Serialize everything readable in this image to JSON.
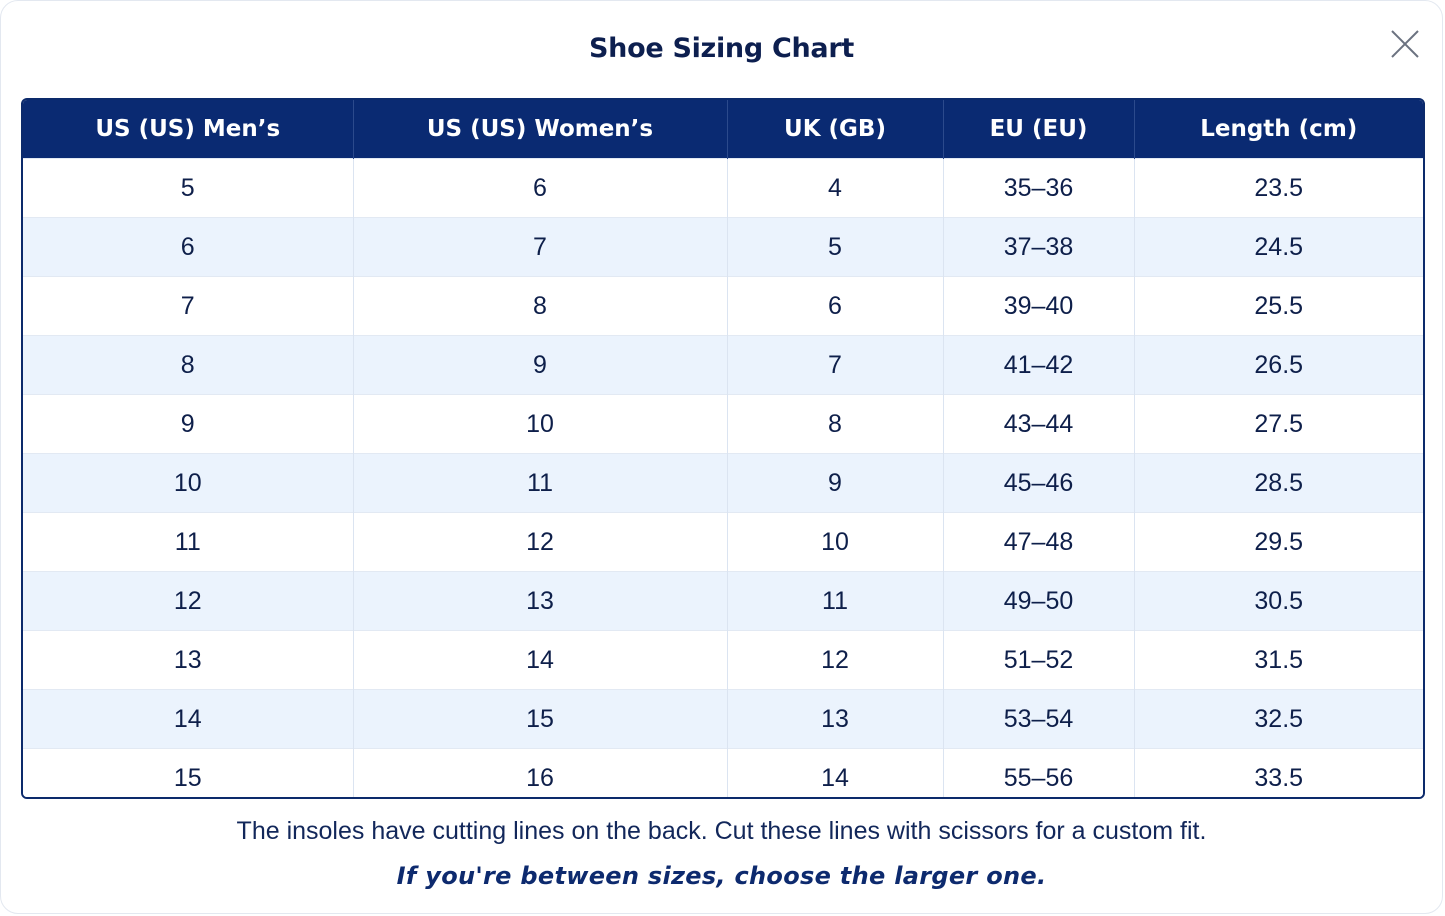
{
  "modal": {
    "title": "Shoe Sizing Chart",
    "close_icon": "close-icon"
  },
  "table": {
    "headers": [
      "US (US) Men’s",
      "US (US) Women’s",
      "UK (GB)",
      "EU (EU)",
      "Length (cm)"
    ],
    "rows": [
      [
        "5",
        "6",
        "4",
        "35–36",
        "23.5"
      ],
      [
        "6",
        "7",
        "5",
        "37–38",
        "24.5"
      ],
      [
        "7",
        "8",
        "6",
        "39–40",
        "25.5"
      ],
      [
        "8",
        "9",
        "7",
        "41–42",
        "26.5"
      ],
      [
        "9",
        "10",
        "8",
        "43–44",
        "27.5"
      ],
      [
        "10",
        "11",
        "9",
        "45–46",
        "28.5"
      ],
      [
        "11",
        "12",
        "10",
        "47–48",
        "29.5"
      ],
      [
        "12",
        "13",
        "11",
        "49–50",
        "30.5"
      ],
      [
        "13",
        "14",
        "12",
        "51–52",
        "31.5"
      ],
      [
        "14",
        "15",
        "13",
        "53–54",
        "32.5"
      ],
      [
        "15",
        "16",
        "14",
        "55–56",
        "33.5"
      ]
    ]
  },
  "footer": {
    "note": "The insoles have cutting lines on the back. Cut these lines with scissors for a custom fit.",
    "tip": "If you're between sizes, choose the larger one."
  },
  "colors": {
    "header_bg": "#0a2a72",
    "stripe_bg": "#ebf3fd",
    "title_text": "#0d1f4f"
  }
}
